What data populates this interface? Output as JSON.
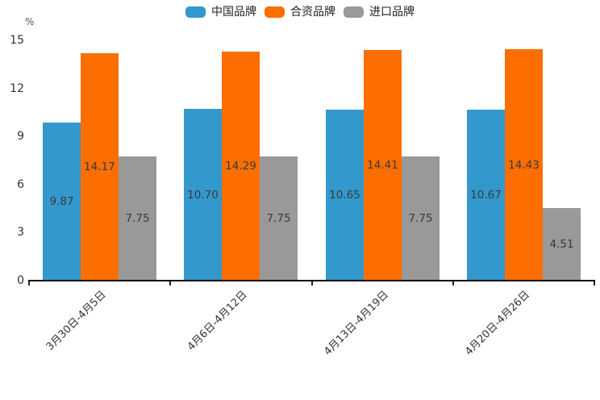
{
  "chart_data": {
    "type": "bar",
    "title": "",
    "unit_label": "%",
    "categories": [
      "3月30日-4月5日",
      "4月6日-4月12日",
      "4月13日-4月19日",
      "4月20日-4月26日"
    ],
    "series": [
      {
        "name": "中国品牌",
        "color": "#3398CC",
        "values": [
          9.87,
          10.7,
          10.65,
          10.67
        ]
      },
      {
        "name": "合资品牌",
        "color": "#FC6E00",
        "values": [
          14.17,
          14.29,
          14.41,
          14.43
        ]
      },
      {
        "name": "进口品牌",
        "color": "#999999",
        "values": [
          7.75,
          7.75,
          7.75,
          4.51
        ]
      }
    ],
    "ylim": [
      0,
      15
    ],
    "yticks": [
      0,
      3,
      6,
      9,
      12,
      15
    ],
    "value_label_decimals": 2,
    "legend_position": "top-center",
    "grid": false,
    "axis_color": "#000000",
    "text_color": "#333333"
  }
}
